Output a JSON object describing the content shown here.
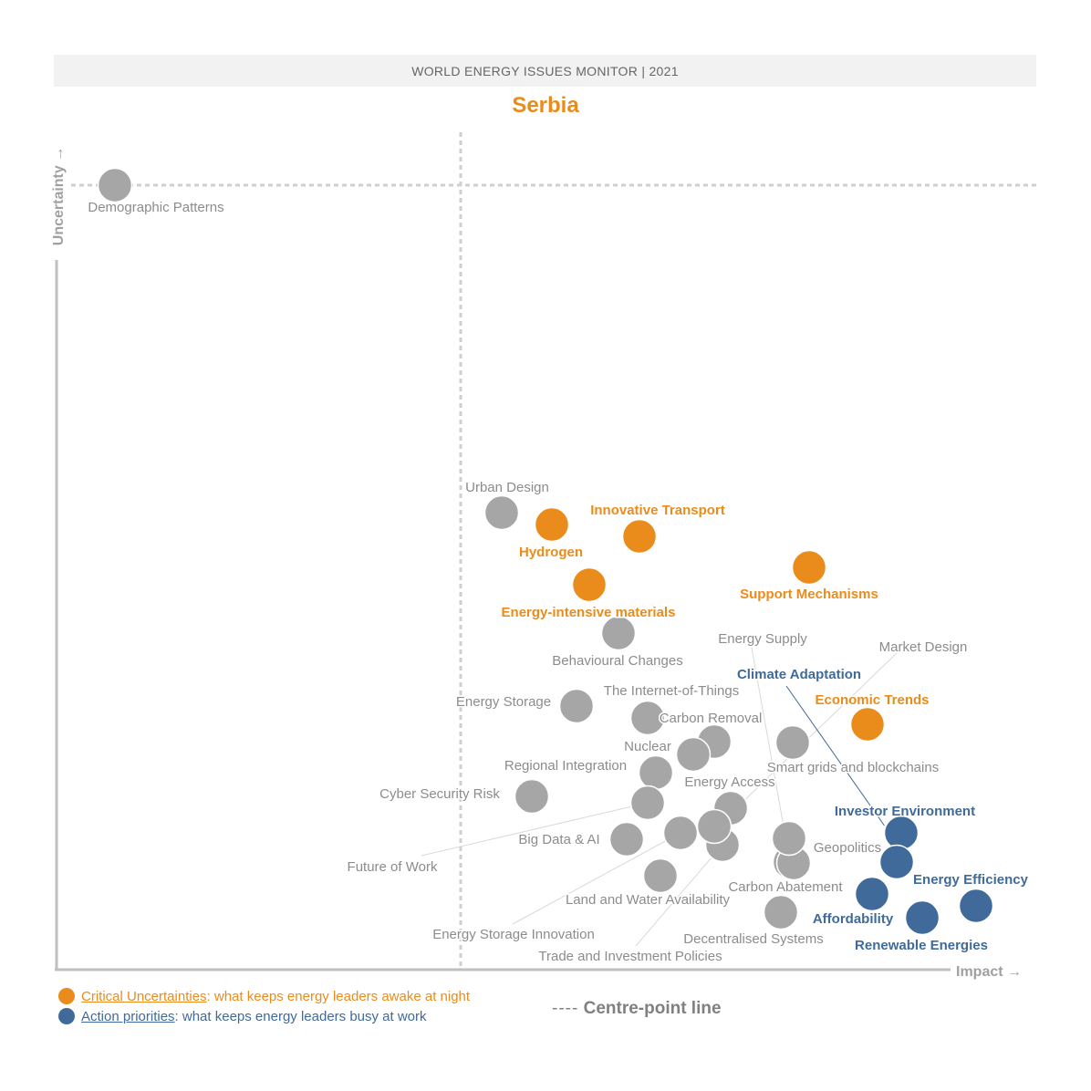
{
  "header": {
    "title": "WORLD ENERGY ISSUES MONITOR | 2021"
  },
  "country": "Serbia",
  "legend": {
    "critical": {
      "name": "Critical Uncertainties",
      "desc": ": what keeps energy leaders awake at night",
      "color": "#ea8c1b"
    },
    "action": {
      "name": "Action priorities",
      "desc": ": what keeps energy leaders busy at work",
      "color": "#3f6a9a"
    },
    "centre_line_dash": "----",
    "centre_line": "Centre-point line"
  },
  "colors": {
    "critical": "#ea8c1b",
    "action": "#3f6a9a",
    "other": "#a6a6a6",
    "axis": "#bfbfbf",
    "label_other": "#8c8c8c"
  },
  "chart_data": {
    "type": "scatter",
    "xlabel": "Impact",
    "ylabel": "Uncertainty",
    "centre_point": {
      "x": 3.0,
      "y": 3.4
    },
    "points": [
      {
        "name": "Demographic Patterns",
        "category": "other",
        "x": 0.73,
        "y": 3.4
      },
      {
        "name": "Urban Design",
        "category": "other",
        "x": 2.98,
        "y": 1.6
      },
      {
        "name": "Hydrogen",
        "category": "critical",
        "x": 3.35,
        "y": 1.55
      },
      {
        "name": "Innovative Transport",
        "category": "critical",
        "x": 3.99,
        "y": 1.5
      },
      {
        "name": "Energy-intensive materials",
        "category": "critical",
        "x": 3.63,
        "y": 1.34
      },
      {
        "name": "Support Mechanisms",
        "category": "critical",
        "x": 5.21,
        "y": 1.37
      },
      {
        "name": "Behavioural Changes",
        "category": "other",
        "x": 3.85,
        "y": 1.21
      },
      {
        "name": "Energy Supply",
        "category": "other",
        "x": 5.07,
        "y": 0.84
      },
      {
        "name": "Market Design",
        "category": "other",
        "x": 5.15,
        "y": 0.82
      },
      {
        "name": "Climate Adaptation",
        "category": "action",
        "x": 5.83,
        "y": 0.6
      },
      {
        "name": "Economic Trends",
        "category": "critical",
        "x": 5.65,
        "y": 0.85
      },
      {
        "name": "Energy Storage",
        "category": "other",
        "x": 3.54,
        "y": 0.98
      },
      {
        "name": "The Internet-of-Things",
        "category": "other",
        "x": 4.05,
        "y": 0.94
      },
      {
        "name": "Carbon Removal",
        "category": "other",
        "x": 4.47,
        "y": 0.88
      },
      {
        "name": "Nuclear",
        "category": "other",
        "x": 4.31,
        "y": 0.85
      },
      {
        "name": "Regional Integration",
        "category": "other",
        "x": 4.1,
        "y": 0.79
      },
      {
        "name": "Smart grids and blockchains",
        "category": "other",
        "x": 4.15,
        "y": 0.67
      },
      {
        "name": "Energy Access",
        "category": "other",
        "x": 4.58,
        "y": 0.65
      },
      {
        "name": "Cyber Security Risk",
        "category": "other",
        "x": 3.24,
        "y": 0.7
      },
      {
        "name": "Future of Work",
        "category": "other",
        "x": 4.06,
        "y": 0.68
      },
      {
        "name": "Big Data & AI",
        "category": "other",
        "x": 3.91,
        "y": 0.57
      },
      {
        "name": "Investor Environment",
        "category": "action",
        "x": 5.7,
        "y": 0.59
      },
      {
        "name": "Geopolitics",
        "category": "other",
        "x": 4.98,
        "y": 0.5
      },
      {
        "name": "Energy Efficiency",
        "category": "action",
        "x": 5.63,
        "y": 0.48
      },
      {
        "name": "Carbon Abatement",
        "category": "other",
        "x": 4.96,
        "y": 0.56
      },
      {
        "name": "Land and Water Availability",
        "category": "other",
        "x": 4.13,
        "y": 0.42
      },
      {
        "name": "Affordability",
        "category": "action",
        "x": 5.52,
        "y": 0.37
      },
      {
        "name": "Energy Storage Innovation",
        "category": "other",
        "x": 4.26,
        "y": 0.6
      },
      {
        "name": "Trade and Investment Policies",
        "category": "other",
        "x": 4.44,
        "y": 0.54
      },
      {
        "name": "Decentralised Systems",
        "category": "other",
        "x": 4.87,
        "y": 0.27
      },
      {
        "name": "Renewable Energies",
        "category": "action",
        "x": 5.71,
        "y": 0.31
      },
      {
        "name": "Renewable Energies 2",
        "category": "action",
        "x": 6.0,
        "y": 0.33
      },
      {
        "name": "Energy Access 2",
        "category": "other",
        "x": 4.53,
        "y": 0.53
      }
    ]
  }
}
